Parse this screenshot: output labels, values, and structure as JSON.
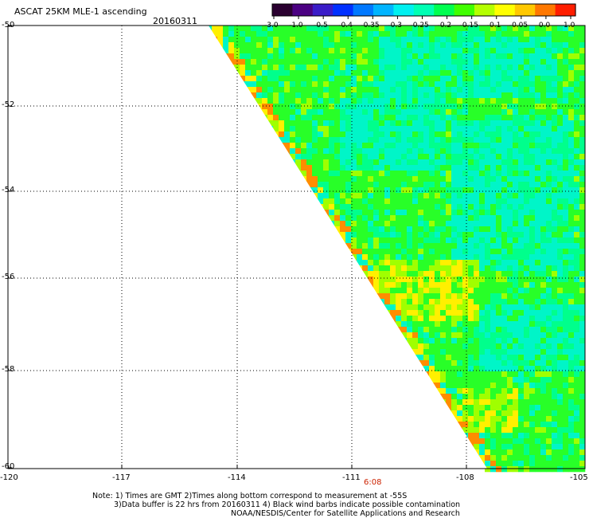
{
  "header": {
    "title": "ASCAT 25KM MLE-1 ascending",
    "date": "20160311"
  },
  "colorbar": {
    "tick_labels": [
      "-3.0",
      "-1.0",
      "-0.5",
      "-0.4",
      "-0.35",
      "-0.3",
      "-0.25",
      "-0.2",
      "-0.15",
      "-0.1",
      "-0.05",
      "0.0",
      "1.0"
    ],
    "colors": [
      "#2a0030",
      "#4b0082",
      "#3a1cc8",
      "#0030ff",
      "#0078ff",
      "#00b4ff",
      "#00f0f0",
      "#00ffb4",
      "#00ff50",
      "#40ff00",
      "#b4ff00",
      "#ffff00",
      "#ffc800",
      "#ff7800",
      "#ff1e00"
    ]
  },
  "map": {
    "lat_labels": [
      "-50",
      "-52",
      "-54",
      "-56",
      "-58",
      "-60"
    ],
    "lon_labels": [
      "-120",
      "-117",
      "-114",
      "-111",
      "-108",
      "-105"
    ],
    "time_label": "6:08",
    "time_color": "#cc2200",
    "swath_edge": "left-diagonal",
    "field_palette": {
      "cyan": "#00f5c8",
      "cyan_green": "#00ff8c",
      "green": "#28ff28",
      "yellow_green": "#a0ff00",
      "yellow": "#fff000",
      "orange": "#ff8c00"
    }
  },
  "notes": [
    "Note: 1) Times are GMT 2)Times along bottom correspond to measurement at -55S",
    "3)Data buffer is 22 hrs from 20160311 4) Black wind barbs indicate possible contamination",
    "NOAA/NESDIS/Center for Satellite Applications and Research"
  ]
}
